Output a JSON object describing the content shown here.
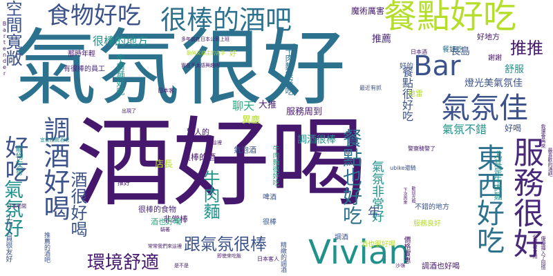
{
  "palette": {
    "dark_purple": "#46186d",
    "purple": "#482878",
    "blue": "#3b528b",
    "teal": "#2c728e",
    "teal2": "#21918c",
    "green": "#27ad81",
    "lime": "#5dc863",
    "yellow": "#b5de2b",
    "bright_yellow": "#d8e219"
  },
  "words": [
    {
      "text": "氣氛很好",
      "weight": 100,
      "color": "#2c728e"
    },
    {
      "text": "酒好喝",
      "weight": 98,
      "color": "#46186d"
    },
    {
      "text": "很棒的酒吧",
      "weight": 40,
      "color": "#2c728e"
    },
    {
      "text": "餐點好吃",
      "weight": 38,
      "color": "#b5de2b"
    },
    {
      "text": "食物好吃",
      "weight": 30,
      "color": "#3b528b"
    },
    {
      "text": "氣氛佳",
      "weight": 30,
      "color": "#3b528b"
    },
    {
      "text": "服務很好",
      "weight": 36,
      "color": "#482878"
    },
    {
      "text": "東西好吃",
      "weight": 32,
      "color": "#2c728e"
    },
    {
      "text": "Vivian",
      "weight": 30,
      "color": "#21918c"
    },
    {
      "text": "Bar",
      "weight": 30,
      "color": "#3b528b"
    },
    {
      "text": "調酒好喝",
      "weight": 28,
      "color": "#3b528b"
    },
    {
      "text": "好吃",
      "weight": 28,
      "color": "#3b528b"
    },
    {
      "text": "氣氛好",
      "weight": 24,
      "color": "#21918c"
    },
    {
      "text": "環境舒適",
      "weight": 22,
      "color": "#46186d"
    },
    {
      "text": "跟氣氛很棒",
      "weight": 20,
      "color": "#3b528b"
    },
    {
      "text": "空間寬敞",
      "weight": 20,
      "color": "#3b528b"
    },
    {
      "text": "酒很好喝",
      "weight": 20,
      "color": "#3b528b"
    },
    {
      "text": "推推",
      "weight": 18,
      "color": "#46186d"
    },
    {
      "text": "牛肉麵",
      "weight": 18,
      "color": "#21918c"
    },
    {
      "text": "餐點也好吃",
      "weight": 18,
      "color": "#2c728e"
    },
    {
      "text": "氣氛不錯",
      "weight": 14,
      "color": "#21918c"
    },
    {
      "text": "氣氛非常好",
      "weight": 14,
      "color": "#21918c"
    },
    {
      "text": "很棒的地方",
      "weight": 12,
      "color": "#21918c"
    },
    {
      "text": "餐點很好吃",
      "weight": 12,
      "color": "#3b528b"
    },
    {
      "text": "年",
      "weight": 14,
      "color": "#3b528b"
    },
    {
      "text": "聊天",
      "weight": 12,
      "color": "#27ad81"
    },
    {
      "text": "長島",
      "weight": 11,
      "color": "#3b528b"
    },
    {
      "text": "推薦",
      "weight": 11,
      "color": "#482878"
    },
    {
      "text": "魔術厲害",
      "weight": 9,
      "color": "#46186d"
    },
    {
      "text": "燈光美氣氛佳",
      "weight": 10,
      "color": "#3b528b"
    },
    {
      "text": "舒服",
      "weight": 10,
      "color": "#21918c"
    },
    {
      "text": "好喝",
      "weight": 9,
      "color": "#3b528b"
    },
    {
      "text": "調酒很棒",
      "weight": 10,
      "color": "#21918c"
    },
    {
      "text": "服務周到",
      "weight": 10,
      "color": "#46186d"
    },
    {
      "text": "大推",
      "weight": 10,
      "color": "#46186d"
    },
    {
      "text": "異塵",
      "weight": 10,
      "color": "#b5de2b"
    },
    {
      "text": "店長",
      "weight": 10,
      "color": "#b5de2b"
    },
    {
      "text": "很棒的酒",
      "weight": 9,
      "color": "#46186d"
    },
    {
      "text": "非常棒",
      "weight": 9,
      "color": "#46186d"
    },
    {
      "text": "很棒的食物",
      "weight": 8,
      "color": "#482878"
    },
    {
      "text": "酒也好喝",
      "weight": 8,
      "color": "#27ad81"
    },
    {
      "text": "調酒也好喝",
      "weight": 8,
      "color": "#46186d"
    },
    {
      "text": "酒也很好喝",
      "weight": 8,
      "color": "#b5de2b"
    },
    {
      "text": "氣泡酒",
      "weight": 8,
      "color": "#3b528b"
    },
    {
      "text": "不錯的地方",
      "weight": 7,
      "color": "#3b528b"
    },
    {
      "text": "服務良好",
      "weight": 7,
      "color": "#b5de2b"
    },
    {
      "text": "尤其是牛肉麵",
      "weight": 8,
      "color": "#21918c"
    },
    {
      "text": "牛肉麵很好吃",
      "weight": 8,
      "color": "#2c728e"
    },
    {
      "text": "牛肉麵好吃",
      "weight": 7,
      "color": "#21918c"
    },
    {
      "text": "牛肉麵很好吃",
      "weight": 7,
      "color": "#27ad81"
    },
    {
      "text": "好地方",
      "weight": 7,
      "color": "#46186d"
    },
    {
      "text": "餐好吃",
      "weight": 6,
      "color": "#2c728e"
    },
    {
      "text": "地雷",
      "weight": 6,
      "color": "#b5de2b"
    },
    {
      "text": "好的",
      "weight": 6,
      "color": "#3b528b"
    },
    {
      "text": "謝謝",
      "weight": 6,
      "color": "#46186d"
    },
    {
      "text": "寵物友善",
      "weight": 6,
      "color": "#21918c"
    },
    {
      "text": "驚人的",
      "weight": 6,
      "color": "#46186d"
    },
    {
      "text": "啤酒",
      "weight": 6,
      "color": "#3b528b"
    },
    {
      "text": "很棒",
      "weight": 6,
      "color": "#3b528b"
    },
    {
      "text": "價格實惠",
      "weight": 6,
      "color": "#46186d"
    },
    {
      "text": "調酒",
      "weight": 6,
      "color": "#3b528b"
    },
    {
      "text": "好",
      "weight": 6,
      "color": "#b5de2b"
    },
    {
      "text": "那時年輕",
      "weight": 6,
      "color": "#46186d"
    },
    {
      "text": "有很棒的員工",
      "weight": 6,
      "color": "#482878"
    },
    {
      "text": "工作人員很友好",
      "weight": 6,
      "color": "#3b528b"
    },
    {
      "text": "推薦的酒吧",
      "weight": 5,
      "color": "#3b528b"
    },
    {
      "text": "精緻的調酒",
      "weight": 5,
      "color": "#3b528b"
    },
    {
      "text": "推好",
      "weight": 5,
      "color": "#46186d"
    },
    {
      "text": "Bartender",
      "weight": 5,
      "color": "#46186d"
    },
    {
      "text": "日本酒",
      "weight": 5,
      "color": "#46186d"
    },
    {
      "text": "日本客人",
      "weight": 5,
      "color": "#46186d"
    },
    {
      "text": "日本客",
      "weight": 5,
      "color": "#46186d"
    },
    {
      "text": "日本老闆",
      "weight": 4,
      "color": "#46186d"
    },
    {
      "text": "ubike還騎",
      "weight": 5,
      "color": "#3b528b"
    },
    {
      "text": "最近有抓",
      "weight": 5,
      "color": "#3b528b"
    },
    {
      "text": "警察騎警了",
      "weight": 5,
      "color": "#46186d"
    },
    {
      "text": "多年前在日本公司上班",
      "weight": 4,
      "color": "#46186d"
    },
    {
      "text": "勤勞又待主的吉手",
      "weight": 4,
      "color": "#b5de2b"
    },
    {
      "text": "實在不太感興趣呢",
      "weight": 4,
      "color": "#46186d"
    },
    {
      "text": "常常我們來這裡",
      "weight": 4,
      "color": "#46186d"
    },
    {
      "text": "即使來吃飯",
      "weight": 4,
      "color": "#46186d"
    },
    {
      "text": "是不是",
      "weight": 4,
      "color": "#46186d"
    },
    {
      "text": "出現了",
      "weight": 4,
      "color": "#46186d"
    },
    {
      "text": "來這裡",
      "weight": 4,
      "color": "#46186d"
    },
    {
      "text": "騎著",
      "weight": 4,
      "color": "#46186d"
    },
    {
      "text": "宜佳推薦酒吧",
      "weight": 4,
      "color": "#21918c"
    },
    {
      "text": "沙嶺",
      "weight": 4,
      "color": "#46186d"
    },
    {
      "text": "但都被食用",
      "weight": 4,
      "color": "#46186d"
    },
    {
      "text": "優優挿入了回憶",
      "weight": 4,
      "color": "#46186d"
    },
    {
      "text": "下次再來",
      "weight": 4,
      "color": "#46186d"
    },
    {
      "text": "歡迎光臨",
      "weight": 4,
      "color": "#46186d"
    },
    {
      "text": "我還會再來",
      "weight": 4,
      "color": "#46186d"
    },
    {
      "text": "最喜歡的酒吧",
      "weight": 4,
      "color": "#46186d"
    }
  ]
}
